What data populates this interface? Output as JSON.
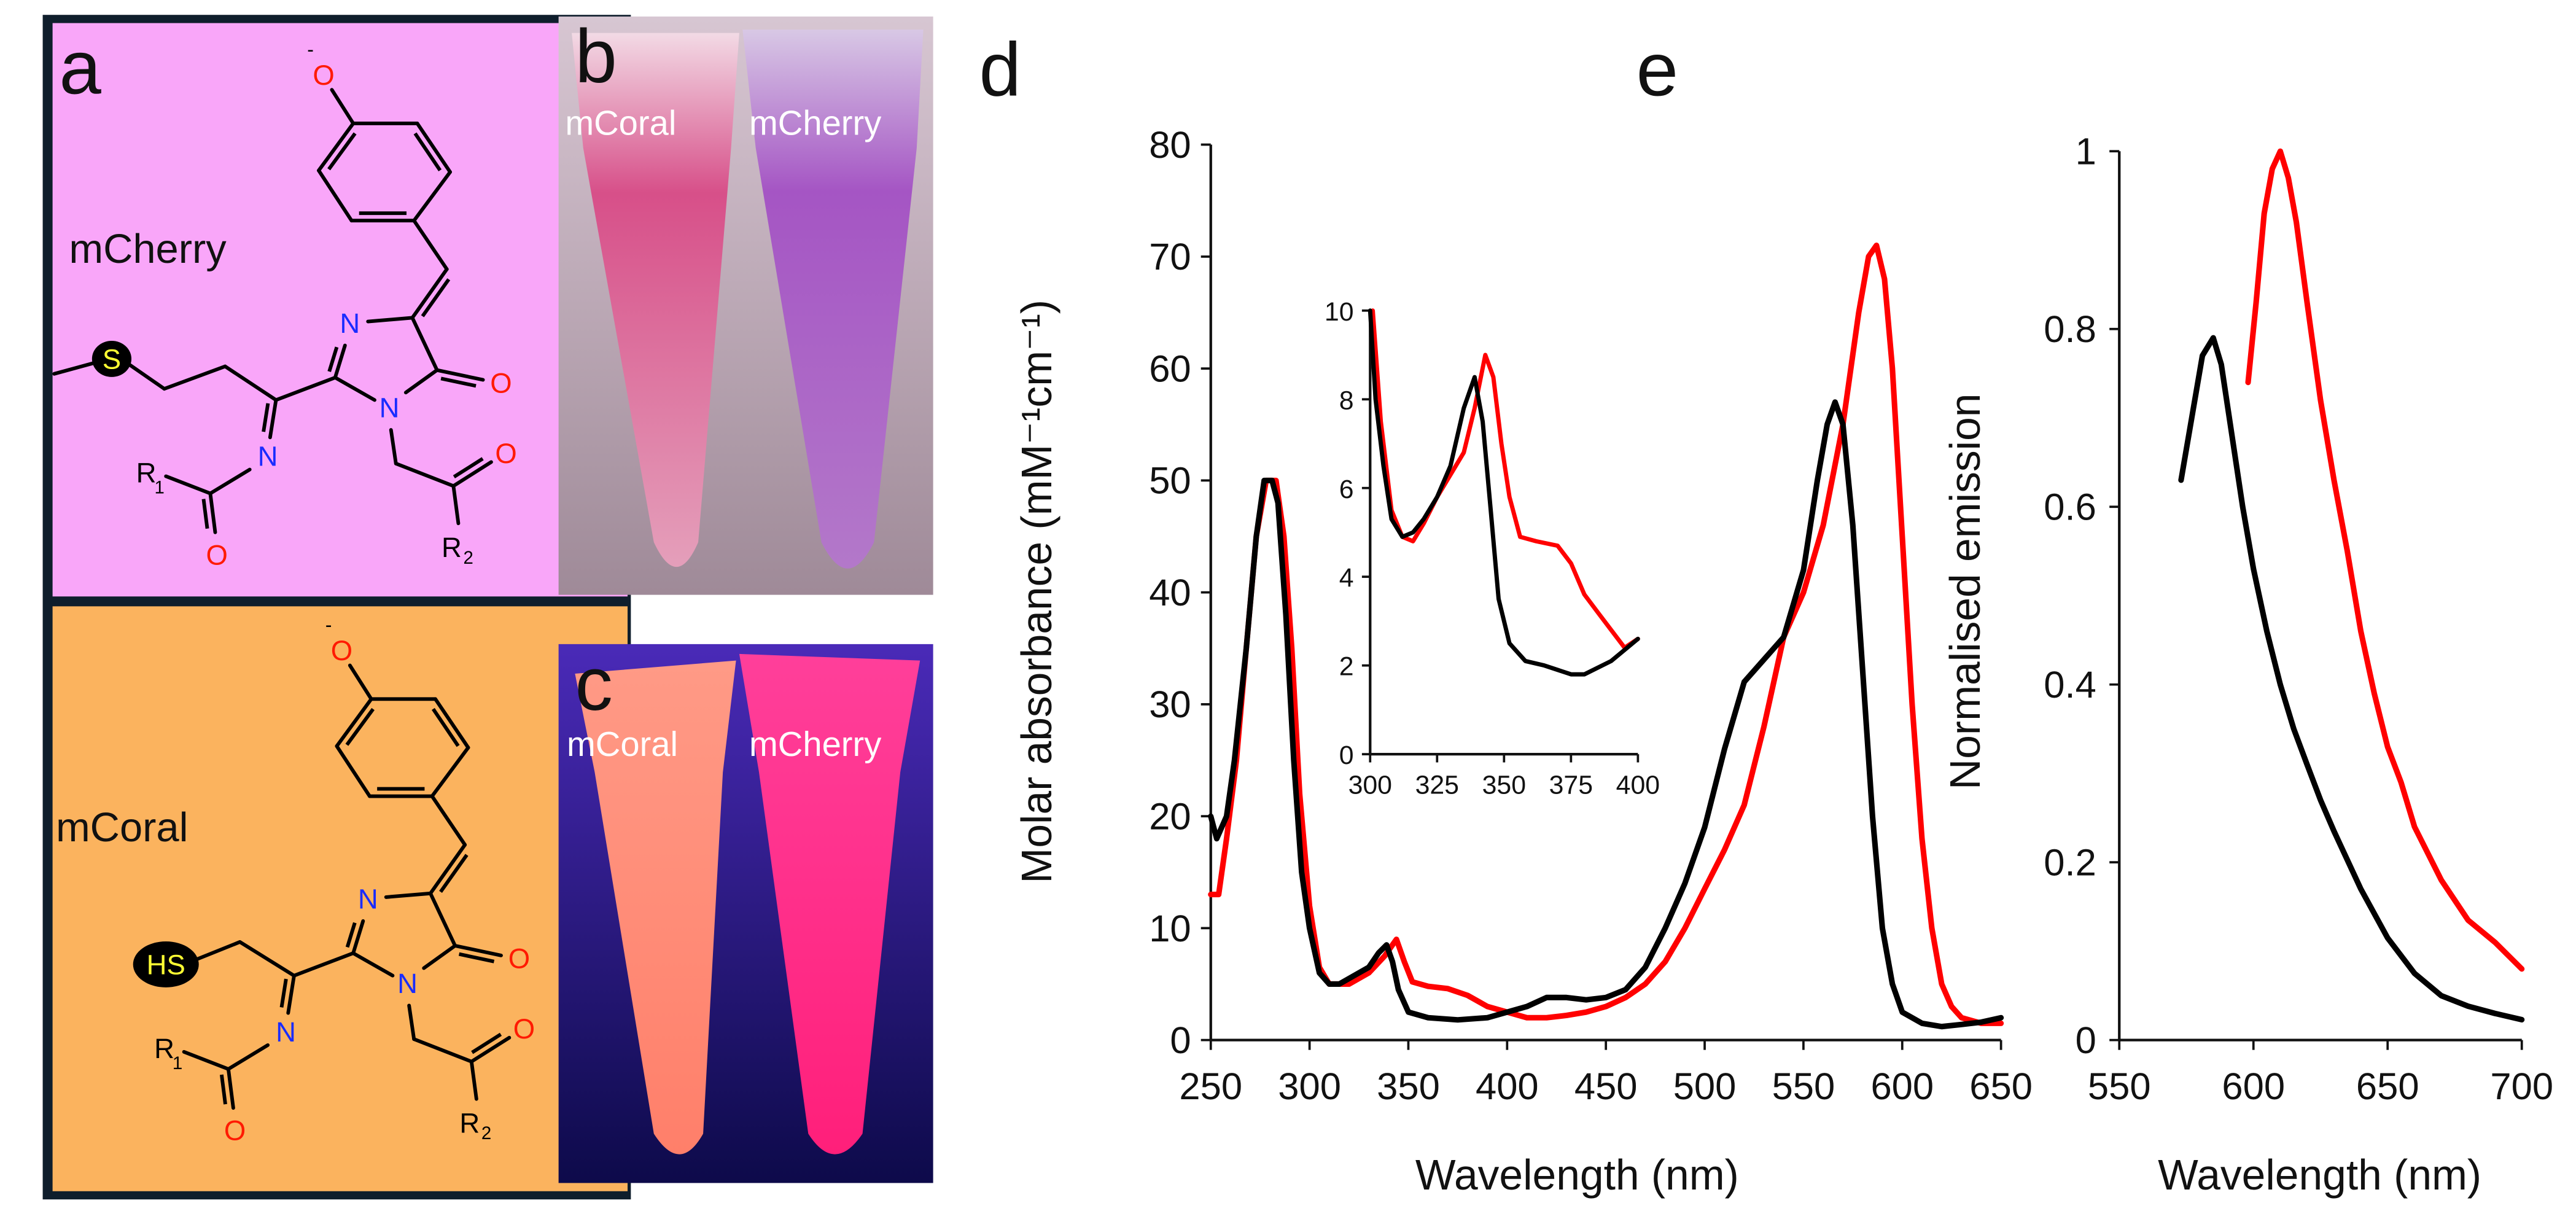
{
  "panels": {
    "a": {
      "letter": "a",
      "top_name": "mCherry",
      "bottom_name": "mCoral",
      "top_color": "#f9a6f9",
      "bottom_color": "#fbb35e",
      "border_color": "#0f1e2c"
    },
    "b": {
      "letter": "b",
      "left_label": "mCoral",
      "right_label": "mCherry"
    },
    "c": {
      "letter": "c",
      "left_label": "mCoral",
      "right_label": "mCherry"
    },
    "d": {
      "letter": "d"
    },
    "e": {
      "letter": "e"
    }
  },
  "structure_labels": {
    "phenolate_o": "O",
    "phenolate_charge": "-",
    "n3": "N",
    "n1": "N",
    "n_imine": "N",
    "o_ring": "O",
    "o_amide": "O",
    "o_acyl": "O",
    "r1": "R",
    "r1_sub": "1",
    "r2": "R",
    "r2_sub": "2",
    "s_top": "S",
    "hs_bottom": "HS"
  },
  "colors": {
    "mCherry": "#ff0000",
    "mCoral": "#000000",
    "oxygen": "#ff1a00",
    "nitrogen": "#1a2cff",
    "sulfur_text": "#ffff33"
  },
  "chart_data": [
    {
      "type": "line",
      "panel": "d",
      "xlabel": "Wavelength (nm)",
      "ylabel": "Molar absorbance (mM⁻¹cm⁻¹)",
      "xlim": [
        250,
        650
      ],
      "ylim": [
        0,
        80
      ],
      "xticks": [
        250,
        300,
        350,
        400,
        450,
        500,
        550,
        600,
        650
      ],
      "yticks": [
        0,
        10,
        20,
        30,
        40,
        50,
        60,
        70,
        80
      ],
      "grid": false,
      "series": [
        {
          "color": "#ff0000",
          "points": [
            [
              250,
              13
            ],
            [
              254,
              13
            ],
            [
              258,
              18
            ],
            [
              263,
              25
            ],
            [
              268,
              35
            ],
            [
              273,
              45
            ],
            [
              278,
              50
            ],
            [
              283,
              50
            ],
            [
              287,
              45
            ],
            [
              291,
              35
            ],
            [
              295,
              22
            ],
            [
              300,
              12
            ],
            [
              305,
              6.5
            ],
            [
              310,
              5
            ],
            [
              315,
              5
            ],
            [
              320,
              5
            ],
            [
              330,
              6
            ],
            [
              338,
              7.5
            ],
            [
              344,
              9
            ],
            [
              348,
              7
            ],
            [
              352,
              5.2
            ],
            [
              360,
              4.8
            ],
            [
              370,
              4.6
            ],
            [
              380,
              4
            ],
            [
              390,
              3
            ],
            [
              400,
              2.5
            ],
            [
              410,
              2
            ],
            [
              420,
              2
            ],
            [
              430,
              2.2
            ],
            [
              440,
              2.5
            ],
            [
              450,
              3
            ],
            [
              460,
              3.8
            ],
            [
              470,
              5
            ],
            [
              480,
              7
            ],
            [
              490,
              10
            ],
            [
              500,
              13.5
            ],
            [
              510,
              17
            ],
            [
              520,
              21
            ],
            [
              530,
              28
            ],
            [
              540,
              36
            ],
            [
              550,
              40
            ],
            [
              560,
              46
            ],
            [
              570,
              55
            ],
            [
              578,
              65
            ],
            [
              583,
              70
            ],
            [
              587,
              71
            ],
            [
              591,
              68
            ],
            [
              595,
              60
            ],
            [
              600,
              45
            ],
            [
              605,
              30
            ],
            [
              610,
              18
            ],
            [
              615,
              10
            ],
            [
              620,
              5
            ],
            [
              625,
              3
            ],
            [
              630,
              2
            ],
            [
              640,
              1.5
            ],
            [
              650,
              1.5
            ]
          ]
        },
        {
          "color": "#000000",
          "points": [
            [
              250,
              20
            ],
            [
              253,
              18
            ],
            [
              258,
              20
            ],
            [
              262,
              25
            ],
            [
              268,
              35
            ],
            [
              273,
              45
            ],
            [
              277,
              50
            ],
            [
              281,
              50
            ],
            [
              284,
              48
            ],
            [
              288,
              38
            ],
            [
              292,
              25
            ],
            [
              296,
              15
            ],
            [
              300,
              10
            ],
            [
              305,
              6
            ],
            [
              310,
              5
            ],
            [
              315,
              5
            ],
            [
              320,
              5.5
            ],
            [
              325,
              6
            ],
            [
              330,
              6.5
            ],
            [
              335,
              7.8
            ],
            [
              339,
              8.5
            ],
            [
              342,
              7
            ],
            [
              345,
              4.5
            ],
            [
              350,
              2.5
            ],
            [
              360,
              2
            ],
            [
              375,
              1.8
            ],
            [
              390,
              2
            ],
            [
              400,
              2.5
            ],
            [
              410,
              3
            ],
            [
              420,
              3.8
            ],
            [
              430,
              3.8
            ],
            [
              440,
              3.6
            ],
            [
              450,
              3.8
            ],
            [
              460,
              4.5
            ],
            [
              470,
              6.5
            ],
            [
              480,
              10
            ],
            [
              490,
              14
            ],
            [
              500,
              19
            ],
            [
              510,
              26
            ],
            [
              520,
              32
            ],
            [
              530,
              34
            ],
            [
              540,
              36
            ],
            [
              550,
              42
            ],
            [
              557,
              50
            ],
            [
              562,
              55
            ],
            [
              566,
              57
            ],
            [
              570,
              55
            ],
            [
              575,
              46
            ],
            [
              580,
              33
            ],
            [
              585,
              20
            ],
            [
              590,
              10
            ],
            [
              595,
              5
            ],
            [
              600,
              2.5
            ],
            [
              610,
              1.5
            ],
            [
              620,
              1.2
            ],
            [
              630,
              1.4
            ],
            [
              640,
              1.6
            ],
            [
              650,
              2
            ]
          ]
        }
      ]
    },
    {
      "type": "line",
      "panel": "d-inset",
      "xlim": [
        300,
        400
      ],
      "ylim": [
        0,
        10
      ],
      "xticks": [
        300,
        325,
        350,
        375,
        400
      ],
      "yticks": [
        0,
        2,
        4,
        6,
        8,
        10
      ],
      "grid": false,
      "series": [
        {
          "color": "#ff0000",
          "points": [
            [
              301,
              10
            ],
            [
              304,
              7.5
            ],
            [
              308,
              5.5
            ],
            [
              312,
              4.9
            ],
            [
              316,
              4.8
            ],
            [
              320,
              5.2
            ],
            [
              325,
              5.8
            ],
            [
              330,
              6.3
            ],
            [
              335,
              6.8
            ],
            [
              339,
              7.8
            ],
            [
              343,
              9
            ],
            [
              346,
              8.5
            ],
            [
              349,
              7
            ],
            [
              352,
              5.8
            ],
            [
              356,
              4.9
            ],
            [
              362,
              4.8
            ],
            [
              370,
              4.7
            ],
            [
              375,
              4.3
            ],
            [
              380,
              3.6
            ],
            [
              385,
              3.2
            ],
            [
              390,
              2.8
            ],
            [
              395,
              2.4
            ],
            [
              400,
              2.6
            ]
          ]
        },
        {
          "color": "#000000",
          "points": [
            [
              300,
              10
            ],
            [
              302,
              8
            ],
            [
              305,
              6.5
            ],
            [
              308,
              5.3
            ],
            [
              312,
              4.9
            ],
            [
              316,
              5
            ],
            [
              320,
              5.3
            ],
            [
              325,
              5.8
            ],
            [
              330,
              6.5
            ],
            [
              335,
              7.8
            ],
            [
              339,
              8.5
            ],
            [
              342,
              7.5
            ],
            [
              345,
              5.5
            ],
            [
              348,
              3.5
            ],
            [
              352,
              2.5
            ],
            [
              358,
              2.1
            ],
            [
              365,
              2
            ],
            [
              375,
              1.8
            ],
            [
              380,
              1.8
            ],
            [
              390,
              2.1
            ],
            [
              400,
              2.6
            ]
          ]
        }
      ]
    },
    {
      "type": "line",
      "panel": "e",
      "xlabel": "Wavelength (nm)",
      "ylabel": "Normalised emission",
      "xlim": [
        550,
        700
      ],
      "ylim": [
        0,
        1
      ],
      "xticks": [
        550,
        600,
        650,
        700
      ],
      "yticks": [
        0,
        0.2,
        0.4,
        0.6,
        0.8,
        1
      ],
      "grid": false,
      "series": [
        {
          "color": "#ff0000",
          "points": [
            [
              598,
              0.74
            ],
            [
              601,
              0.83
            ],
            [
              604,
              0.93
            ],
            [
              607,
              0.98
            ],
            [
              610,
              1.0
            ],
            [
              613,
              0.97
            ],
            [
              616,
              0.92
            ],
            [
              620,
              0.83
            ],
            [
              625,
              0.72
            ],
            [
              630,
              0.63
            ],
            [
              635,
              0.55
            ],
            [
              640,
              0.46
            ],
            [
              645,
              0.39
            ],
            [
              650,
              0.33
            ],
            [
              655,
              0.29
            ],
            [
              660,
              0.24
            ],
            [
              670,
              0.18
            ],
            [
              680,
              0.135
            ],
            [
              690,
              0.11
            ],
            [
              700,
              0.08
            ]
          ]
        },
        {
          "color": "#000000",
          "points": [
            [
              573,
              0.63
            ],
            [
              577,
              0.7
            ],
            [
              581,
              0.77
            ],
            [
              585,
              0.79
            ],
            [
              588,
              0.76
            ],
            [
              592,
              0.68
            ],
            [
              596,
              0.6
            ],
            [
              600,
              0.53
            ],
            [
              605,
              0.46
            ],
            [
              610,
              0.4
            ],
            [
              615,
              0.35
            ],
            [
              620,
              0.31
            ],
            [
              625,
              0.27
            ],
            [
              630,
              0.235
            ],
            [
              640,
              0.17
            ],
            [
              650,
              0.115
            ],
            [
              660,
              0.075
            ],
            [
              670,
              0.05
            ],
            [
              680,
              0.038
            ],
            [
              690,
              0.03
            ],
            [
              700,
              0.023
            ]
          ]
        }
      ]
    }
  ]
}
